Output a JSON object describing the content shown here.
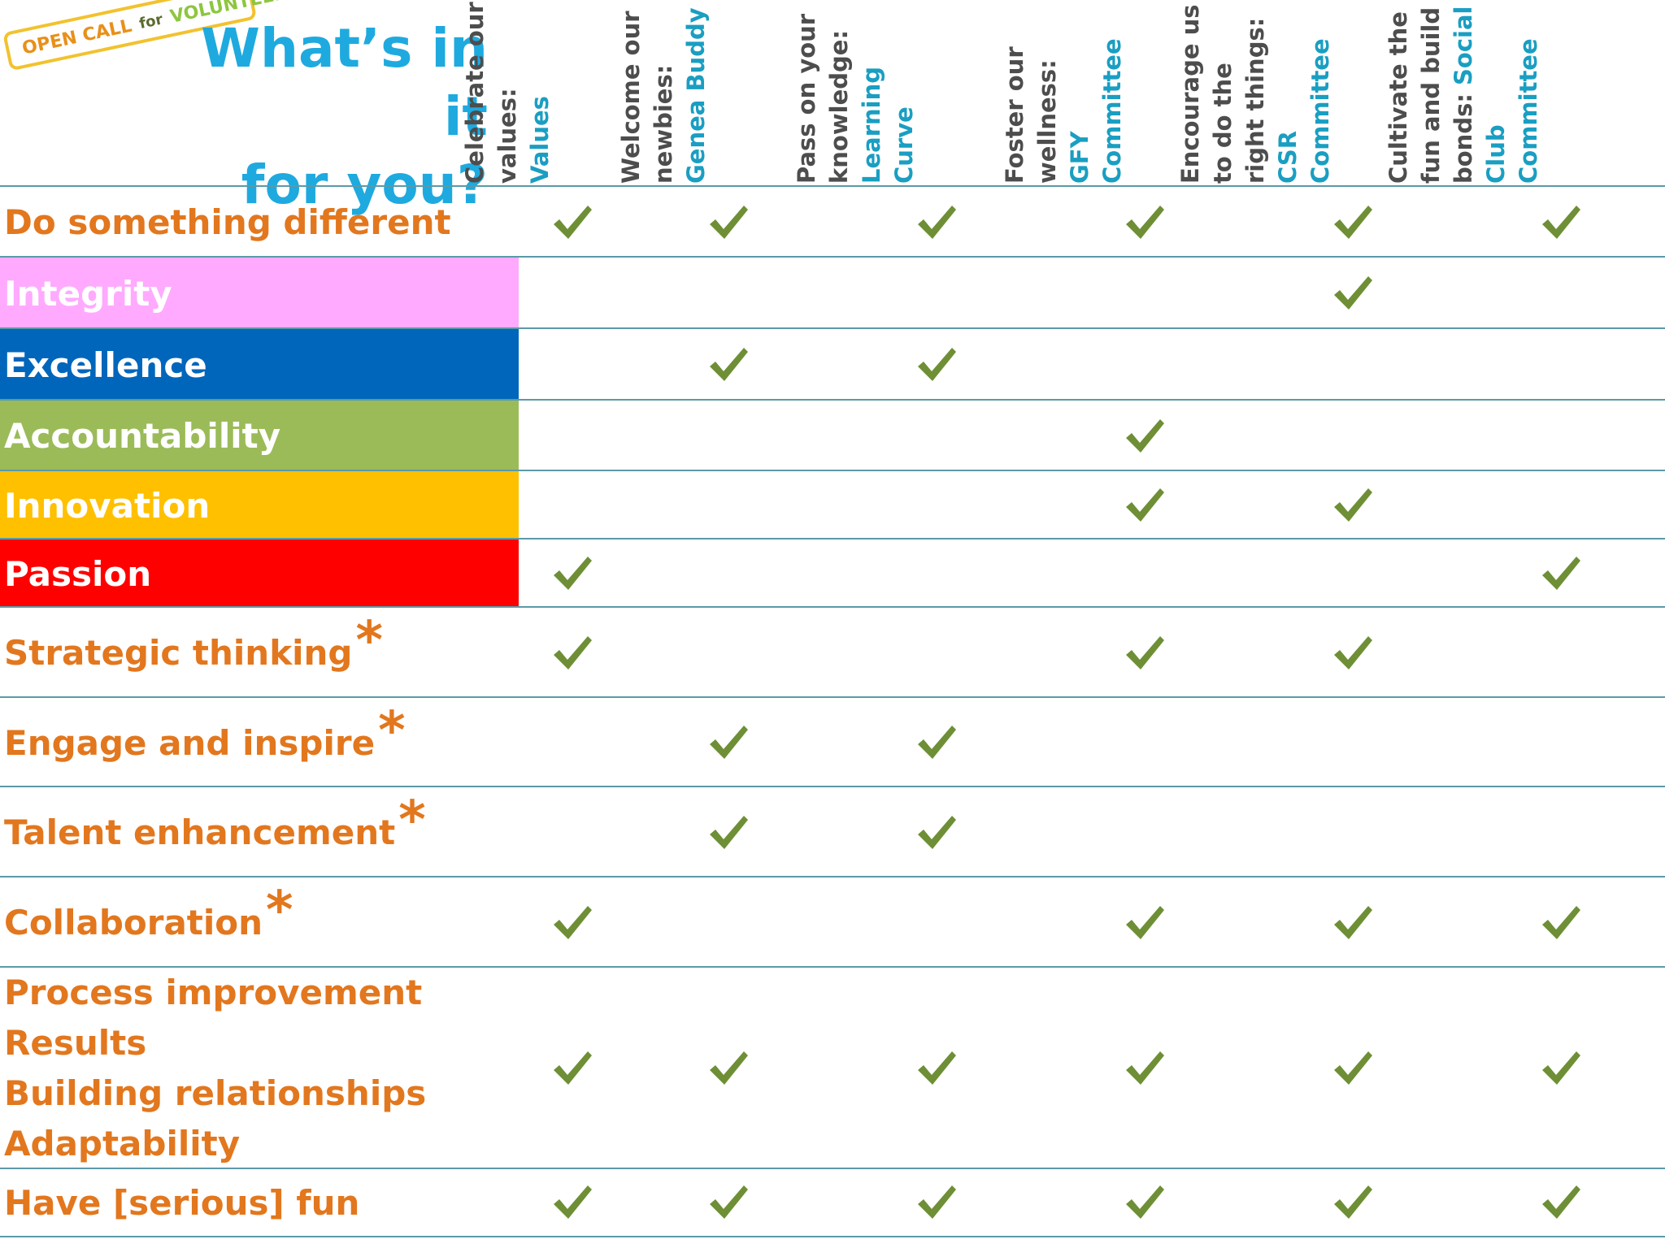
{
  "stamp": {
    "open": "OPEN CALL",
    "for": "for",
    "volunteers": "VOLUNTEERS"
  },
  "title": {
    "line1": "What’s in it",
    "line2": "for you?"
  },
  "columns": [
    {
      "text": "Celebrate our values: ",
      "highlight": "Values"
    },
    {
      "text": "Welcome our newbies: ",
      "highlight": "Genea Buddy"
    },
    {
      "text": "Pass on your knowledge: ",
      "highlight": "Learning Curve"
    },
    {
      "text": "Foster our wellness: ",
      "highlight": "GFY Committee"
    },
    {
      "text": "Encourage us to do the right things: ",
      "highlight": "CSR Committee"
    },
    {
      "text": "Cultivate the fun and build bonds: ",
      "highlight": "Social Club Committee"
    }
  ],
  "rows": [
    {
      "labels": [
        "Do something different"
      ],
      "checks": [
        true,
        true,
        true,
        true,
        true,
        true
      ]
    },
    {
      "labels": [
        "Integrity"
      ],
      "fill": "#ffaaff",
      "checks": [
        false,
        false,
        false,
        false,
        true,
        false
      ]
    },
    {
      "labels": [
        "Excellence"
      ],
      "fill": "#0066bb",
      "checks": [
        false,
        true,
        true,
        false,
        false,
        false
      ]
    },
    {
      "labels": [
        "Accountability"
      ],
      "fill": "#9bbb59",
      "checks": [
        false,
        false,
        false,
        true,
        false,
        false
      ]
    },
    {
      "labels": [
        "Innovation"
      ],
      "fill": "#ffc000",
      "checks": [
        false,
        false,
        false,
        true,
        true,
        false
      ]
    },
    {
      "labels": [
        "Passion"
      ],
      "fill": "#ff0000",
      "checks": [
        true,
        false,
        false,
        false,
        false,
        true
      ]
    },
    {
      "labels": [
        "Strategic thinking"
      ],
      "star": "*",
      "checks": [
        true,
        false,
        false,
        true,
        true,
        false
      ]
    },
    {
      "labels": [
        "Engage and inspire"
      ],
      "star": "*",
      "checks": [
        false,
        true,
        true,
        false,
        false,
        false
      ]
    },
    {
      "labels": [
        "Talent enhancement"
      ],
      "star": "*",
      "checks": [
        false,
        true,
        true,
        false,
        false,
        false
      ]
    },
    {
      "labels": [
        "Collaboration"
      ],
      "star": "*",
      "checks": [
        true,
        false,
        false,
        true,
        true,
        true
      ]
    },
    {
      "labels": [
        "Process improvement",
        "Results",
        "Building relationships",
        "Adaptability"
      ],
      "checks": [
        true,
        true,
        true,
        true,
        true,
        true
      ]
    },
    {
      "labels": [
        "Have [serious] fun"
      ],
      "checks": [
        true,
        true,
        true,
        true,
        true,
        true
      ]
    }
  ],
  "colors": {
    "title": "#1eaadf",
    "label": "#e2771e",
    "check": "#6e8f35",
    "rule": "#5b9aa8"
  }
}
